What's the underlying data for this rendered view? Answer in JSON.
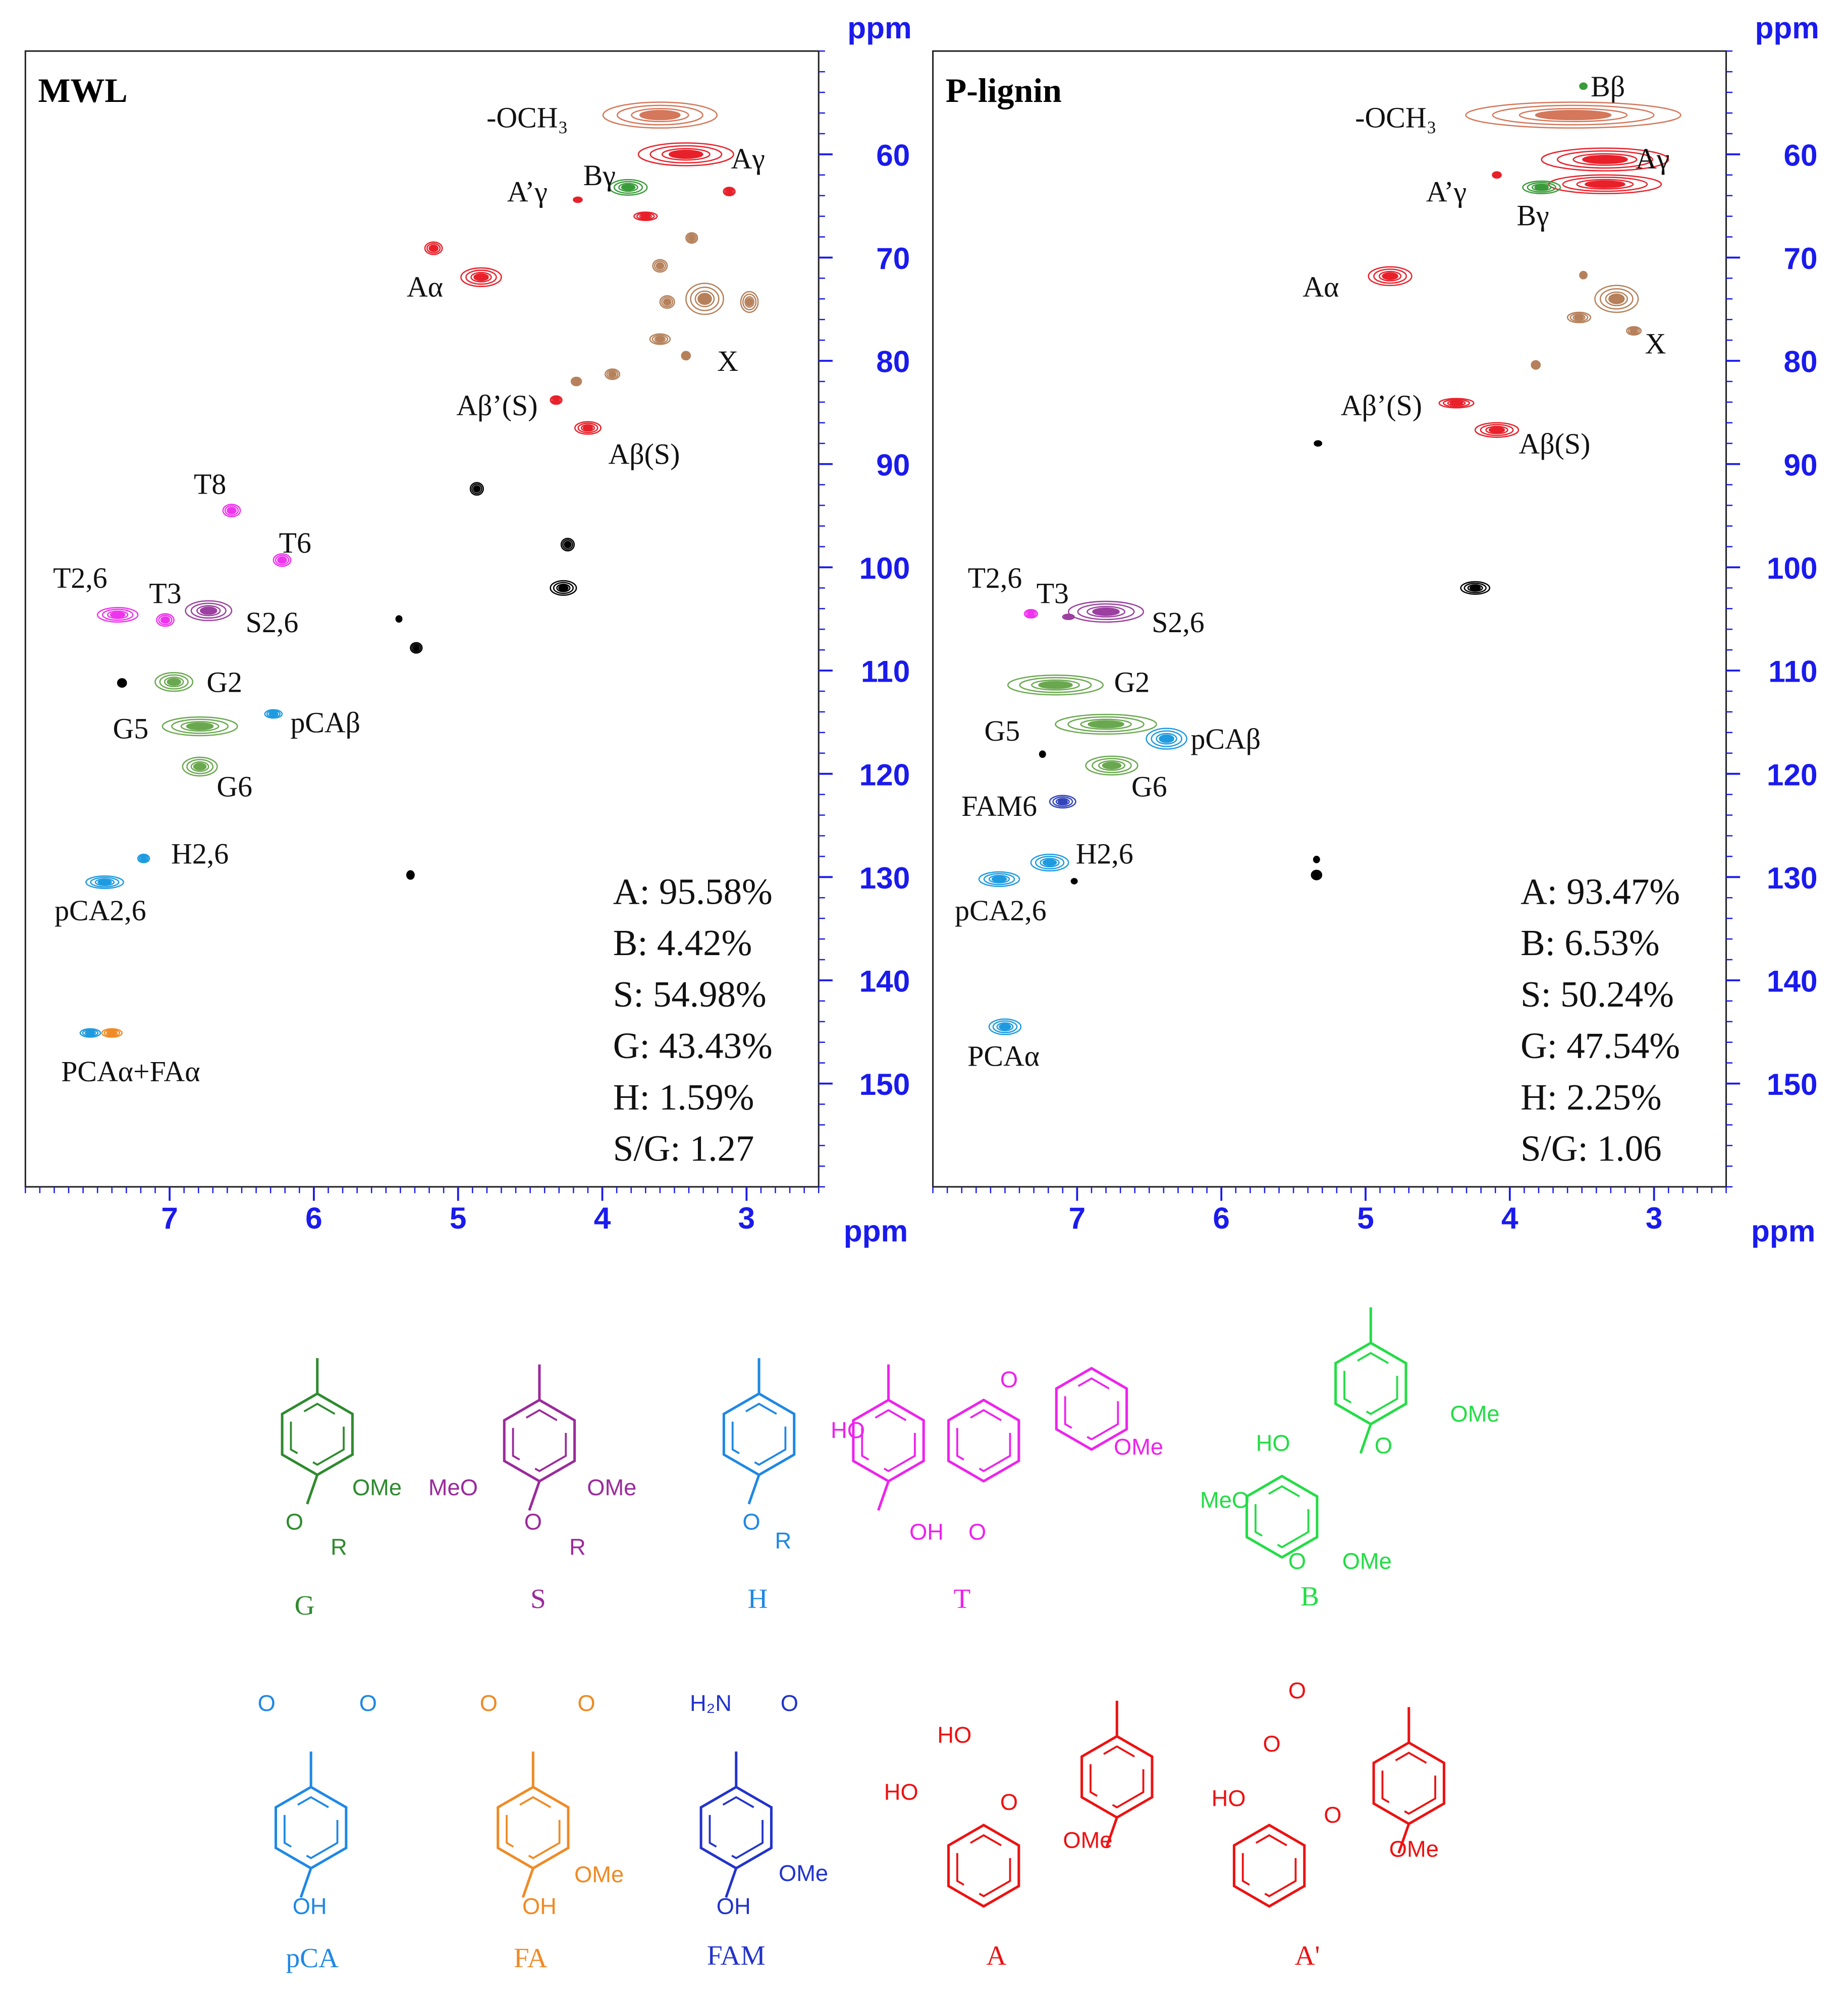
{
  "chart_data": [
    {
      "type": "contour",
      "title": "MWL",
      "x_label": "ppm",
      "y_label": "ppm",
      "xlim": [
        8,
        2.5
      ],
      "ylim": [
        160,
        50
      ],
      "xticks": [
        7,
        6,
        5,
        4,
        3
      ],
      "yticks": [
        60,
        70,
        80,
        90,
        100,
        110,
        120,
        130,
        140,
        150
      ],
      "peaks": [
        {
          "x": 3.6,
          "y": 56.2,
          "dx": 0.79,
          "dy": 2.5,
          "color": "#d4775a"
        },
        {
          "x": 3.42,
          "y": 60.0,
          "dx": 0.66,
          "dy": 2.2,
          "color": "#e8202a"
        },
        {
          "x": 3.12,
          "y": 63.6,
          "dx": 0.08,
          "dy": 0.8,
          "color": "#e8202a"
        },
        {
          "x": 3.82,
          "y": 63.2,
          "dx": 0.26,
          "dy": 1.5,
          "color": "#3a9b3a"
        },
        {
          "x": 4.17,
          "y": 64.4,
          "dx": 0.06,
          "dy": 0.5,
          "color": "#e8202a"
        },
        {
          "x": 3.7,
          "y": 66.0,
          "dx": 0.16,
          "dy": 0.8,
          "color": "#e8202a"
        },
        {
          "x": 5.17,
          "y": 69.1,
          "dx": 0.12,
          "dy": 1.2,
          "color": "#e8202a"
        },
        {
          "x": 4.84,
          "y": 71.9,
          "dx": 0.28,
          "dy": 1.8,
          "color": "#e8202a"
        },
        {
          "x": 3.38,
          "y": 68.1,
          "dx": 0.08,
          "dy": 1.0,
          "color": "#b5805a"
        },
        {
          "x": 3.6,
          "y": 70.8,
          "dx": 0.1,
          "dy": 1.2,
          "color": "#b5805a"
        },
        {
          "x": 3.29,
          "y": 74.0,
          "dx": 0.26,
          "dy": 3.0,
          "color": "#b5805a"
        },
        {
          "x": 2.98,
          "y": 74.3,
          "dx": 0.12,
          "dy": 2.0,
          "color": "#b5805a"
        },
        {
          "x": 3.55,
          "y": 74.3,
          "dx": 0.1,
          "dy": 1.2,
          "color": "#b5805a"
        },
        {
          "x": 3.6,
          "y": 77.9,
          "dx": 0.14,
          "dy": 1.0,
          "color": "#b5805a"
        },
        {
          "x": 3.42,
          "y": 79.5,
          "dx": 0.06,
          "dy": 0.8,
          "color": "#b5805a"
        },
        {
          "x": 3.93,
          "y": 81.3,
          "dx": 0.1,
          "dy": 1.0,
          "color": "#b5805a"
        },
        {
          "x": 4.18,
          "y": 82.0,
          "dx": 0.07,
          "dy": 0.8,
          "color": "#b5805a"
        },
        {
          "x": 4.32,
          "y": 83.8,
          "dx": 0.08,
          "dy": 0.8,
          "color": "#e8202a"
        },
        {
          "x": 4.1,
          "y": 86.5,
          "dx": 0.18,
          "dy": 1.2,
          "color": "#e8202a"
        },
        {
          "x": 4.87,
          "y": 92.4,
          "dx": 0.09,
          "dy": 1.2,
          "color": "#000000"
        },
        {
          "x": 4.24,
          "y": 97.8,
          "dx": 0.09,
          "dy": 1.2,
          "color": "#000000"
        },
        {
          "x": 4.27,
          "y": 102.0,
          "dx": 0.18,
          "dy": 1.4,
          "color": "#000000"
        },
        {
          "x": 5.41,
          "y": 105.0,
          "dx": 0.04,
          "dy": 0.6,
          "color": "#000000"
        },
        {
          "x": 5.29,
          "y": 107.8,
          "dx": 0.08,
          "dy": 1.0,
          "color": "#000000"
        },
        {
          "x": 7.33,
          "y": 111.2,
          "dx": 0.06,
          "dy": 0.8,
          "color": "#000000"
        },
        {
          "x": 5.33,
          "y": 129.8,
          "dx": 0.05,
          "dy": 0.8,
          "color": "#000000"
        },
        {
          "x": 6.57,
          "y": 94.5,
          "dx": 0.12,
          "dy": 1.2,
          "color": "#ee33ee"
        },
        {
          "x": 6.22,
          "y": 99.3,
          "dx": 0.12,
          "dy": 1.2,
          "color": "#ee33ee"
        },
        {
          "x": 7.36,
          "y": 104.6,
          "dx": 0.28,
          "dy": 1.4,
          "color": "#ee33ee"
        },
        {
          "x": 7.03,
          "y": 105.1,
          "dx": 0.12,
          "dy": 1.2,
          "color": "#ee33ee"
        },
        {
          "x": 6.73,
          "y": 104.2,
          "dx": 0.32,
          "dy": 1.9,
          "color": "#9b3fa0"
        },
        {
          "x": 6.97,
          "y": 111.1,
          "dx": 0.26,
          "dy": 1.8,
          "color": "#6aa84f"
        },
        {
          "x": 6.79,
          "y": 115.4,
          "dx": 0.52,
          "dy": 1.8,
          "color": "#6aa84f"
        },
        {
          "x": 6.79,
          "y": 119.3,
          "dx": 0.24,
          "dy": 1.8,
          "color": "#6aa84f"
        },
        {
          "x": 6.28,
          "y": 114.2,
          "dx": 0.12,
          "dy": 0.8,
          "color": "#1e9be0"
        },
        {
          "x": 7.18,
          "y": 128.2,
          "dx": 0.08,
          "dy": 0.8,
          "color": "#1e9be0"
        },
        {
          "x": 7.45,
          "y": 130.5,
          "dx": 0.26,
          "dy": 1.2,
          "color": "#1e9be0"
        },
        {
          "x": 7.55,
          "y": 145.1,
          "dx": 0.14,
          "dy": 0.8,
          "color": "#1e9be0"
        },
        {
          "x": 7.4,
          "y": 145.1,
          "dx": 0.14,
          "dy": 0.8,
          "color": "#f08a24"
        }
      ],
      "annotations": [
        {
          "text": "-OCH₃",
          "x": 4.52,
          "y": 56.4
        },
        {
          "text": "Aγ",
          "x": 2.99,
          "y": 60.4
        },
        {
          "text": "A’γ",
          "x": 4.52,
          "y": 63.6
        },
        {
          "text": "Bγ",
          "x": 4.02,
          "y": 62.0
        },
        {
          "text": "Aα",
          "x": 5.23,
          "y": 72.8
        },
        {
          "text": "X",
          "x": 3.13,
          "y": 80.0
        },
        {
          "text": "Aβ’(S)",
          "x": 4.73,
          "y": 84.3
        },
        {
          "text": "Aβ(S)",
          "x": 3.71,
          "y": 89.0
        },
        {
          "text": "T8",
          "x": 6.72,
          "y": 91.9
        },
        {
          "text": "T6",
          "x": 6.13,
          "y": 97.6
        },
        {
          "text": "T2,6",
          "x": 7.62,
          "y": 101.0
        },
        {
          "text": "T3",
          "x": 7.03,
          "y": 102.5
        },
        {
          "text": "S2,6",
          "x": 6.29,
          "y": 105.3
        },
        {
          "text": "G2",
          "x": 6.62,
          "y": 111.1
        },
        {
          "text": "pCAβ",
          "x": 5.92,
          "y": 115.0
        },
        {
          "text": "G5",
          "x": 7.27,
          "y": 115.6
        },
        {
          "text": "G6",
          "x": 6.55,
          "y": 121.2
        },
        {
          "text": "H2,6",
          "x": 6.79,
          "y": 127.7
        },
        {
          "text": "pCA2,6",
          "x": 7.48,
          "y": 133.2
        },
        {
          "text": "PCAα+FAα",
          "x": 7.27,
          "y": 148.8
        }
      ],
      "stats": [
        "A: 95.58%",
        "B: 4.42%",
        "S: 54.98%",
        "G: 43.43%",
        "H: 1.59%",
        "S/G: 1.27"
      ]
    },
    {
      "type": "contour",
      "title": "P-lignin",
      "x_label": "ppm",
      "y_label": "ppm",
      "xlim": [
        8,
        2.5
      ],
      "ylim": [
        160,
        50
      ],
      "xticks": [
        7,
        6,
        5,
        4,
        3
      ],
      "yticks": [
        60,
        70,
        80,
        90,
        100,
        110,
        120,
        130,
        140,
        150
      ],
      "peaks": [
        {
          "x": 3.56,
          "y": 56.2,
          "dx": 1.49,
          "dy": 2.5,
          "color": "#d4775a"
        },
        {
          "x": 3.49,
          "y": 53.4,
          "dx": 0.05,
          "dy": 0.6,
          "color": "#3a9b3a"
        },
        {
          "x": 3.34,
          "y": 60.5,
          "dx": 0.88,
          "dy": 2.2,
          "color": "#e8202a"
        },
        {
          "x": 3.34,
          "y": 62.9,
          "dx": 0.78,
          "dy": 1.8,
          "color": "#e8202a"
        },
        {
          "x": 3.78,
          "y": 63.2,
          "dx": 0.26,
          "dy": 1.2,
          "color": "#3a9b3a"
        },
        {
          "x": 4.09,
          "y": 62.0,
          "dx": 0.06,
          "dy": 0.6,
          "color": "#e8202a"
        },
        {
          "x": 4.83,
          "y": 71.8,
          "dx": 0.3,
          "dy": 1.8,
          "color": "#e8202a"
        },
        {
          "x": 3.49,
          "y": 71.7,
          "dx": 0.05,
          "dy": 0.7,
          "color": "#b5805a"
        },
        {
          "x": 3.26,
          "y": 74.0,
          "dx": 0.3,
          "dy": 2.6,
          "color": "#b5805a"
        },
        {
          "x": 3.52,
          "y": 75.8,
          "dx": 0.16,
          "dy": 1.0,
          "color": "#b5805a"
        },
        {
          "x": 3.14,
          "y": 77.1,
          "dx": 0.1,
          "dy": 0.8,
          "color": "#b5805a"
        },
        {
          "x": 3.82,
          "y": 80.4,
          "dx": 0.06,
          "dy": 0.8,
          "color": "#b5805a"
        },
        {
          "x": 4.37,
          "y": 84.1,
          "dx": 0.24,
          "dy": 0.9,
          "color": "#e8202a"
        },
        {
          "x": 4.09,
          "y": 86.7,
          "dx": 0.3,
          "dy": 1.4,
          "color": "#e8202a"
        },
        {
          "x": 5.33,
          "y": 88.0,
          "dx": 0.05,
          "dy": 0.5,
          "color": "#000000"
        },
        {
          "x": 4.24,
          "y": 102.0,
          "dx": 0.2,
          "dy": 1.2,
          "color": "#000000"
        },
        {
          "x": 7.32,
          "y": 104.5,
          "dx": 0.09,
          "dy": 0.8,
          "color": "#ee33ee"
        },
        {
          "x": 7.06,
          "y": 104.8,
          "dx": 0.08,
          "dy": 0.5,
          "color": "#9b3fa0"
        },
        {
          "x": 6.8,
          "y": 104.3,
          "dx": 0.52,
          "dy": 2.0,
          "color": "#9b3fa0"
        },
        {
          "x": 7.15,
          "y": 111.4,
          "dx": 0.66,
          "dy": 1.9,
          "color": "#6aa84f"
        },
        {
          "x": 6.8,
          "y": 115.2,
          "dx": 0.7,
          "dy": 1.9,
          "color": "#6aa84f"
        },
        {
          "x": 6.38,
          "y": 116.6,
          "dx": 0.28,
          "dy": 2.0,
          "color": "#1e9be0"
        },
        {
          "x": 6.76,
          "y": 119.2,
          "dx": 0.36,
          "dy": 1.8,
          "color": "#6aa84f"
        },
        {
          "x": 7.1,
          "y": 122.7,
          "dx": 0.18,
          "dy": 1.2,
          "color": "#3344bb"
        },
        {
          "x": 7.24,
          "y": 118.1,
          "dx": 0.04,
          "dy": 0.6,
          "color": "#000000"
        },
        {
          "x": 7.19,
          "y": 128.6,
          "dx": 0.26,
          "dy": 1.6,
          "color": "#1e9be0"
        },
        {
          "x": 7.54,
          "y": 130.2,
          "dx": 0.28,
          "dy": 1.4,
          "color": "#1e9be0"
        },
        {
          "x": 5.34,
          "y": 128.3,
          "dx": 0.04,
          "dy": 0.6,
          "color": "#000000"
        },
        {
          "x": 5.34,
          "y": 129.8,
          "dx": 0.07,
          "dy": 0.9,
          "color": "#000000"
        },
        {
          "x": 7.02,
          "y": 130.4,
          "dx": 0.04,
          "dy": 0.5,
          "color": "#000000"
        },
        {
          "x": 7.5,
          "y": 144.5,
          "dx": 0.22,
          "dy": 1.5,
          "color": "#1e9be0"
        }
      ],
      "annotations": [
        {
          "text": "-OCH₃",
          "x": 4.79,
          "y": 56.4
        },
        {
          "text": "Bβ",
          "x": 3.32,
          "y": 53.4
        },
        {
          "text": "Aγ",
          "x": 3.01,
          "y": 60.4
        },
        {
          "text": "A’γ",
          "x": 4.44,
          "y": 63.6
        },
        {
          "text": "Bγ",
          "x": 3.84,
          "y": 65.9
        },
        {
          "text": "Aα",
          "x": 5.31,
          "y": 72.8
        },
        {
          "text": "X",
          "x": 2.99,
          "y": 78.3
        },
        {
          "text": "Aβ’(S)",
          "x": 4.89,
          "y": 84.3
        },
        {
          "text": "Aβ(S)",
          "x": 3.69,
          "y": 88.0
        },
        {
          "text": "T2,6",
          "x": 7.57,
          "y": 101.0
        },
        {
          "text": "T3",
          "x": 7.17,
          "y": 102.5
        },
        {
          "text": "S2,6",
          "x": 6.3,
          "y": 105.3
        },
        {
          "text": "G2",
          "x": 6.62,
          "y": 111.1
        },
        {
          "text": "G5",
          "x": 7.52,
          "y": 115.8
        },
        {
          "text": "pCAβ",
          "x": 5.97,
          "y": 116.6
        },
        {
          "text": "G6",
          "x": 6.5,
          "y": 121.2
        },
        {
          "text": "FAM6",
          "x": 7.54,
          "y": 123.1
        },
        {
          "text": "H2,6",
          "x": 6.81,
          "y": 127.7
        },
        {
          "text": "pCA2,6",
          "x": 7.53,
          "y": 133.2
        },
        {
          "text": "PCAα",
          "x": 7.51,
          "y": 147.3
        }
      ],
      "stats": [
        "A: 93.47%",
        "B: 6.53%",
        "S: 50.24%",
        "G: 47.54%",
        "H: 2.25%",
        "S/G: 1.06"
      ]
    }
  ],
  "structures": [
    {
      "name": "G",
      "color": "#2e8b2e",
      "texts": [
        "OMe",
        "O",
        "R"
      ]
    },
    {
      "name": "S",
      "color": "#9b2a9b",
      "texts": [
        "MeO",
        "OMe",
        "O",
        "R"
      ]
    },
    {
      "name": "H",
      "color": "#1e88e5",
      "texts": [
        "O",
        "R"
      ]
    },
    {
      "name": "T",
      "color": "#ee22ee",
      "texts": [
        "HO",
        "OH",
        "O",
        "O",
        "OMe"
      ]
    },
    {
      "name": "B",
      "color": "#22dd44",
      "texts": [
        "HO",
        "O",
        "OMe",
        "MeO",
        "O",
        "OMe"
      ]
    },
    {
      "name": "pCA",
      "color": "#1e88e5",
      "texts": [
        "O",
        "O",
        "OH"
      ]
    },
    {
      "name": "FA",
      "color": "#f08a24",
      "texts": [
        "O",
        "O",
        "OMe",
        "OH"
      ]
    },
    {
      "name": "FAM",
      "color": "#2233cc",
      "texts": [
        "H₂N",
        "O",
        "OMe",
        "OH"
      ]
    },
    {
      "name": "A",
      "color": "#ee1111",
      "texts": [
        "HO",
        "HO",
        "O",
        "OMe"
      ]
    },
    {
      "name": "A'",
      "color": "#ee1111",
      "texts": [
        "O",
        "O",
        "HO",
        "O",
        "OMe"
      ]
    }
  ]
}
